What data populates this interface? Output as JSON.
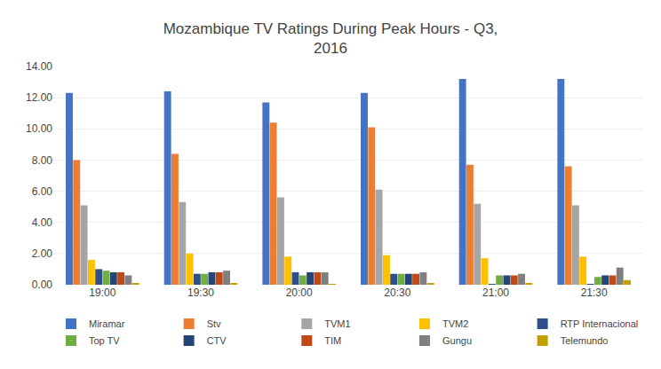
{
  "chart_data": {
    "type": "bar",
    "title": "Mozambique TV Ratings During Peak Hours - Q3,\n2016",
    "categories": [
      "19:00",
      "19:30",
      "20:00",
      "20:30",
      "21:00",
      "21:30"
    ],
    "series": [
      {
        "name": "Miramar",
        "color": "#4472C4",
        "values": [
          12.3,
          12.4,
          11.7,
          12.3,
          13.2,
          13.2
        ]
      },
      {
        "name": "Stv",
        "color": "#ED7D31",
        "values": [
          8.0,
          8.4,
          10.4,
          10.1,
          7.7,
          7.6
        ]
      },
      {
        "name": "TVM1",
        "color": "#A5A5A5",
        "values": [
          5.1,
          5.3,
          5.6,
          6.1,
          5.2,
          5.1
        ]
      },
      {
        "name": "TVM2",
        "color": "#FFC000",
        "values": [
          1.6,
          2.0,
          1.8,
          1.9,
          1.7,
          1.8
        ]
      },
      {
        "name": "RTP Internacional",
        "color": "#2E4F8A",
        "values": [
          1.0,
          0.7,
          0.8,
          0.7,
          0.05,
          0.05
        ]
      },
      {
        "name": "Top TV",
        "color": "#70AD47",
        "values": [
          0.9,
          0.7,
          0.6,
          0.7,
          0.6,
          0.5
        ]
      },
      {
        "name": "CTV",
        "color": "#264478",
        "values": [
          0.8,
          0.8,
          0.8,
          0.7,
          0.6,
          0.6
        ]
      },
      {
        "name": "TIM",
        "color": "#BE4B17",
        "values": [
          0.8,
          0.8,
          0.8,
          0.7,
          0.6,
          0.6
        ]
      },
      {
        "name": "Gungu",
        "color": "#7F7F7F",
        "values": [
          0.6,
          0.9,
          0.8,
          0.8,
          0.7,
          1.1
        ]
      },
      {
        "name": "Telemundo",
        "color": "#C0A000",
        "values": [
          0.1,
          0.1,
          0.02,
          0.1,
          0.1,
          0.3
        ]
      }
    ],
    "ylim": [
      0,
      14.0
    ],
    "yticks": [
      {
        "value": 0.0,
        "label": "0.00"
      },
      {
        "value": 2.0,
        "label": "2.00"
      },
      {
        "value": 4.0,
        "label": "4.00"
      },
      {
        "value": 6.0,
        "label": "6.00"
      },
      {
        "value": 8.0,
        "label": "8.00"
      },
      {
        "value": 10.0,
        "label": "10.00"
      },
      {
        "value": 12.0,
        "label": "12.00"
      },
      {
        "value": 14.0,
        "label": "14.00"
      }
    ],
    "grid": true,
    "legend": "bottom"
  }
}
